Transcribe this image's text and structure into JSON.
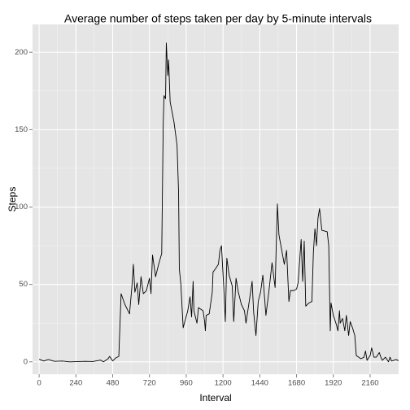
{
  "chart_data": {
    "type": "line",
    "title": "Average number of steps taken per day by 5-minute intervals",
    "x_label": "Interval",
    "y_label": "Steps",
    "xlim": [
      -43,
      2346
    ],
    "ylim": [
      -8,
      218
    ],
    "xticks": [
      0,
      240,
      480,
      720,
      960,
      1200,
      1440,
      1680,
      1920,
      2160
    ],
    "yticks": [
      0,
      50,
      100,
      150,
      200
    ],
    "grid": true,
    "x": [
      0,
      30,
      60,
      100,
      150,
      200,
      300,
      350,
      400,
      420,
      450,
      460,
      480,
      500,
      520,
      535,
      560,
      590,
      605,
      615,
      625,
      640,
      650,
      665,
      680,
      700,
      720,
      730,
      740,
      760,
      780,
      800,
      810,
      815,
      825,
      830,
      840,
      845,
      855,
      880,
      900,
      910,
      915,
      925,
      940,
      970,
      985,
      995,
      1005,
      1010,
      1030,
      1040,
      1070,
      1080,
      1085,
      1090,
      1110,
      1130,
      1135,
      1150,
      1170,
      1180,
      1190,
      1205,
      1215,
      1225,
      1240,
      1260,
      1270,
      1285,
      1300,
      1320,
      1340,
      1350,
      1365,
      1380,
      1390,
      1400,
      1415,
      1430,
      1445,
      1460,
      1480,
      1500,
      1520,
      1540,
      1555,
      1565,
      1600,
      1615,
      1630,
      1640,
      1660,
      1680,
      1690,
      1710,
      1720,
      1730,
      1740,
      1760,
      1780,
      1790,
      1800,
      1810,
      1820,
      1830,
      1845,
      1880,
      1890,
      1900,
      1905,
      1920,
      1940,
      1950,
      1960,
      1965,
      1980,
      1995,
      2005,
      2020,
      2030,
      2045,
      2060,
      2070,
      2100,
      2120,
      2130,
      2140,
      2160,
      2170,
      2185,
      2200,
      2220,
      2230,
      2240,
      2260,
      2280,
      2290,
      2300,
      2330,
      2345
    ],
    "series": [
      {
        "name": "Steps",
        "color": "#000000",
        "values": [
          1.7,
          0.5,
          1.5,
          0.3,
          0.5,
          0,
          0.3,
          0.2,
          1.1,
          0,
          2,
          3.5,
          0.6,
          2.5,
          3.5,
          44,
          37,
          31,
          48,
          63,
          45,
          51,
          37,
          55,
          44,
          46,
          54,
          44,
          69,
          55,
          63,
          70,
          155,
          172,
          170,
          206,
          185,
          195,
          168,
          155,
          140,
          110,
          60,
          50,
          22,
          33,
          42,
          29,
          52,
          33,
          25,
          35,
          33,
          26,
          20,
          30,
          31,
          45,
          58,
          60,
          63,
          72,
          75,
          48,
          26,
          67,
          56,
          49,
          26,
          54,
          45,
          37,
          33,
          25,
          35,
          45,
          52,
          32,
          17,
          39,
          45,
          56,
          30,
          46,
          64,
          48,
          102,
          82,
          63,
          72,
          39,
          46,
          46,
          47,
          51,
          79,
          52,
          78,
          36,
          38,
          39,
          71,
          86,
          75,
          93,
          99,
          85,
          84,
          75,
          20,
          38,
          30,
          24,
          20,
          33,
          25,
          28,
          20,
          30,
          17,
          26,
          22,
          17,
          4,
          2,
          3,
          7,
          1,
          4,
          9,
          3,
          3,
          6,
          3,
          1,
          3,
          0,
          3,
          0.5,
          1.5,
          0.7
        ]
      }
    ]
  }
}
